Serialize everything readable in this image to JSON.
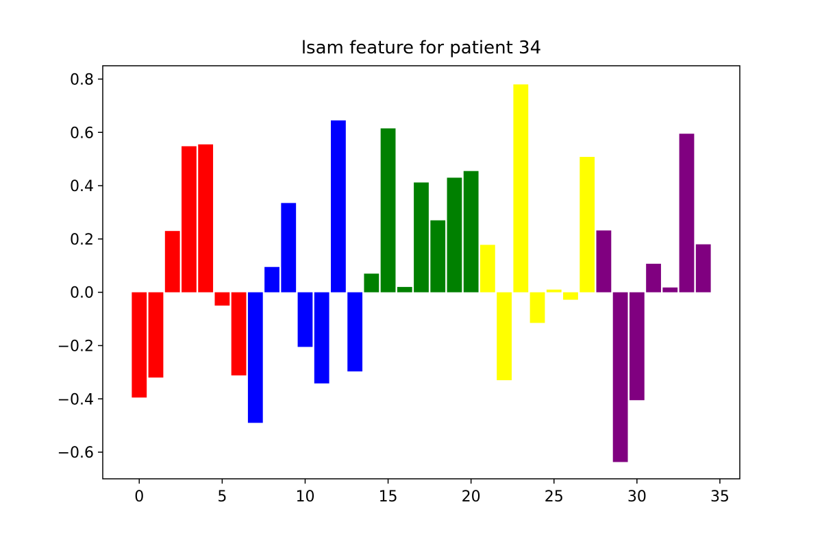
{
  "chart_data": {
    "type": "bar",
    "title": "lsam feature for patient 34",
    "xlabel": "",
    "ylabel": "",
    "xlim": [
      -2.2,
      36.2
    ],
    "ylim": [
      -0.7,
      0.85
    ],
    "xticks": [
      0,
      5,
      10,
      15,
      20,
      25,
      30,
      35
    ],
    "yticks": [
      -0.6,
      -0.4,
      -0.2,
      0.0,
      0.2,
      0.4,
      0.6,
      0.8
    ],
    "ytick_labels": [
      "−0.6",
      "−0.4",
      "−0.2",
      "0.0",
      "0.2",
      "0.4",
      "0.6",
      "0.8"
    ],
    "grid": false,
    "series": [
      {
        "color": "#ff0000",
        "x": [
          0,
          1,
          2,
          3,
          4,
          5,
          6
        ],
        "values": [
          -0.395,
          -0.32,
          0.23,
          0.548,
          0.555,
          -0.05,
          -0.312
        ]
      },
      {
        "color": "#0000ff",
        "x": [
          7,
          8,
          9,
          10,
          11,
          12,
          13
        ],
        "values": [
          -0.49,
          0.095,
          0.335,
          -0.205,
          -0.342,
          0.645,
          -0.297
        ]
      },
      {
        "color": "#008000",
        "x": [
          14,
          15,
          16,
          17,
          18,
          19,
          20
        ],
        "values": [
          0.07,
          0.615,
          0.02,
          0.412,
          0.27,
          0.43,
          0.455
        ]
      },
      {
        "color": "#ffff00",
        "x": [
          21,
          22,
          23,
          24,
          25,
          26,
          27
        ],
        "values": [
          0.178,
          -0.33,
          0.78,
          -0.115,
          0.01,
          -0.028,
          0.508
        ]
      },
      {
        "color": "#800080",
        "x": [
          28,
          29,
          30,
          31,
          32,
          33,
          34
        ],
        "values": [
          0.232,
          -0.637,
          -0.405,
          0.107,
          0.018,
          0.595,
          0.18
        ]
      }
    ]
  }
}
